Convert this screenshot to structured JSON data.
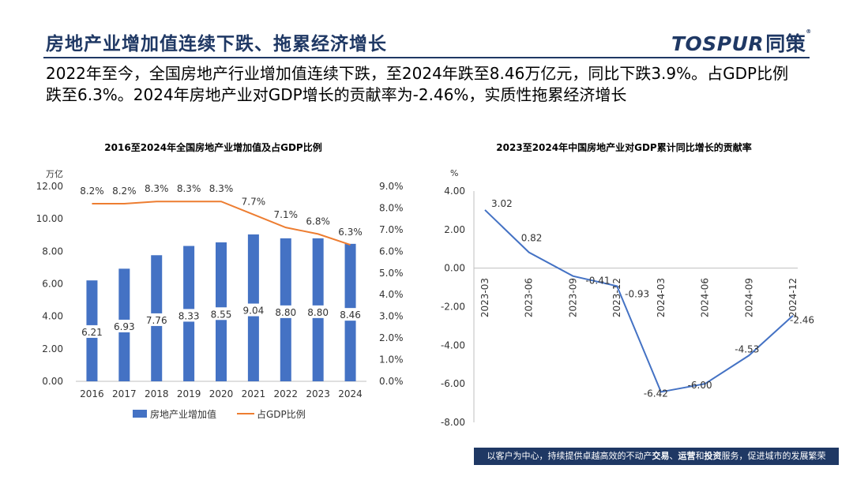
{
  "header": {
    "title": "房地产业增加值连续下跌、拖累经济增长",
    "logo_text": "TOSPUR",
    "logo_cn": "同策",
    "logo_mark": "®",
    "subtitle": "2022年至今，全国房地产行业增加值连续下跌，至2024年跌至8.46万亿元，同比下跌3.9%。占GDP比例跌至6.3%。2024年房地产业对GDP增长的贡献率为-2.46%，实质性拖累经济增长"
  },
  "footer": {
    "text_1": "以客户为中心，持续提供卓越高效的不动产",
    "bold_1": "交易",
    "sep_1": "、",
    "bold_2": "运营",
    "text_2": "和",
    "bold_3": "投资",
    "text_3": "服务，促进城市的发展繁荣"
  },
  "colors": {
    "navy": "#1f3864",
    "bar": "#4472c4",
    "line_orange": "#ed7d31",
    "line_blue": "#4472c4"
  },
  "chart_data": [
    {
      "type": "bar",
      "title": "2016至2024年全国房地产业增加值及占GDP比例",
      "ylabel": "万亿",
      "categories": [
        "2016",
        "2017",
        "2018",
        "2019",
        "2020",
        "2021",
        "2022",
        "2023",
        "2024"
      ],
      "ylim": [
        0,
        12
      ],
      "yticks": [
        "0.00",
        "2.00",
        "4.00",
        "6.00",
        "8.00",
        "10.00",
        "12.00"
      ],
      "y2lim": [
        0,
        9
      ],
      "y2ticks": [
        "0.0%",
        "1.0%",
        "2.0%",
        "3.0%",
        "4.0%",
        "5.0%",
        "6.0%",
        "7.0%",
        "8.0%",
        "9.0%"
      ],
      "legend_position": "bottom",
      "series": [
        {
          "name": "房地产业增加值",
          "type": "bar",
          "axis": "left",
          "values": [
            6.21,
            6.93,
            7.76,
            8.33,
            8.55,
            9.04,
            8.8,
            8.8,
            8.46
          ],
          "labels": [
            "6.21",
            "6.93",
            "7.76",
            "8.33",
            "8.55",
            "9.04",
            "8.80",
            "8.80",
            "8.46"
          ]
        },
        {
          "name": "占GDP比例",
          "type": "line",
          "axis": "right",
          "values": [
            8.2,
            8.2,
            8.3,
            8.3,
            8.3,
            7.7,
            7.1,
            6.8,
            6.3
          ],
          "labels": [
            "8.2%",
            "8.2%",
            "8.3%",
            "8.3%",
            "8.3%",
            "7.7%",
            "7.1%",
            "6.8%",
            "6.3%"
          ]
        }
      ]
    },
    {
      "type": "line",
      "title": "2023至2024年中国房地产业对GDP累计同比增长的贡献率",
      "ylabel": "%",
      "categories": [
        "2023-03",
        "2023-06",
        "2023-09",
        "2023-12",
        "2024-03",
        "2024-06",
        "2024-09",
        "2024-12"
      ],
      "ylim": [
        -8,
        4
      ],
      "yticks": [
        "-8.00",
        "-6.00",
        "-4.00",
        "-2.00",
        "0.00",
        "2.00",
        "4.00"
      ],
      "series": [
        {
          "values": [
            3.02,
            0.82,
            -0.41,
            -0.93,
            -6.42,
            -6.0,
            -4.53,
            -2.46
          ],
          "labels": [
            "3.02",
            "0.82",
            "-0.41",
            "-0.93",
            "-6.42",
            "-6.00",
            "-4.53",
            "-2.46"
          ]
        }
      ]
    }
  ]
}
